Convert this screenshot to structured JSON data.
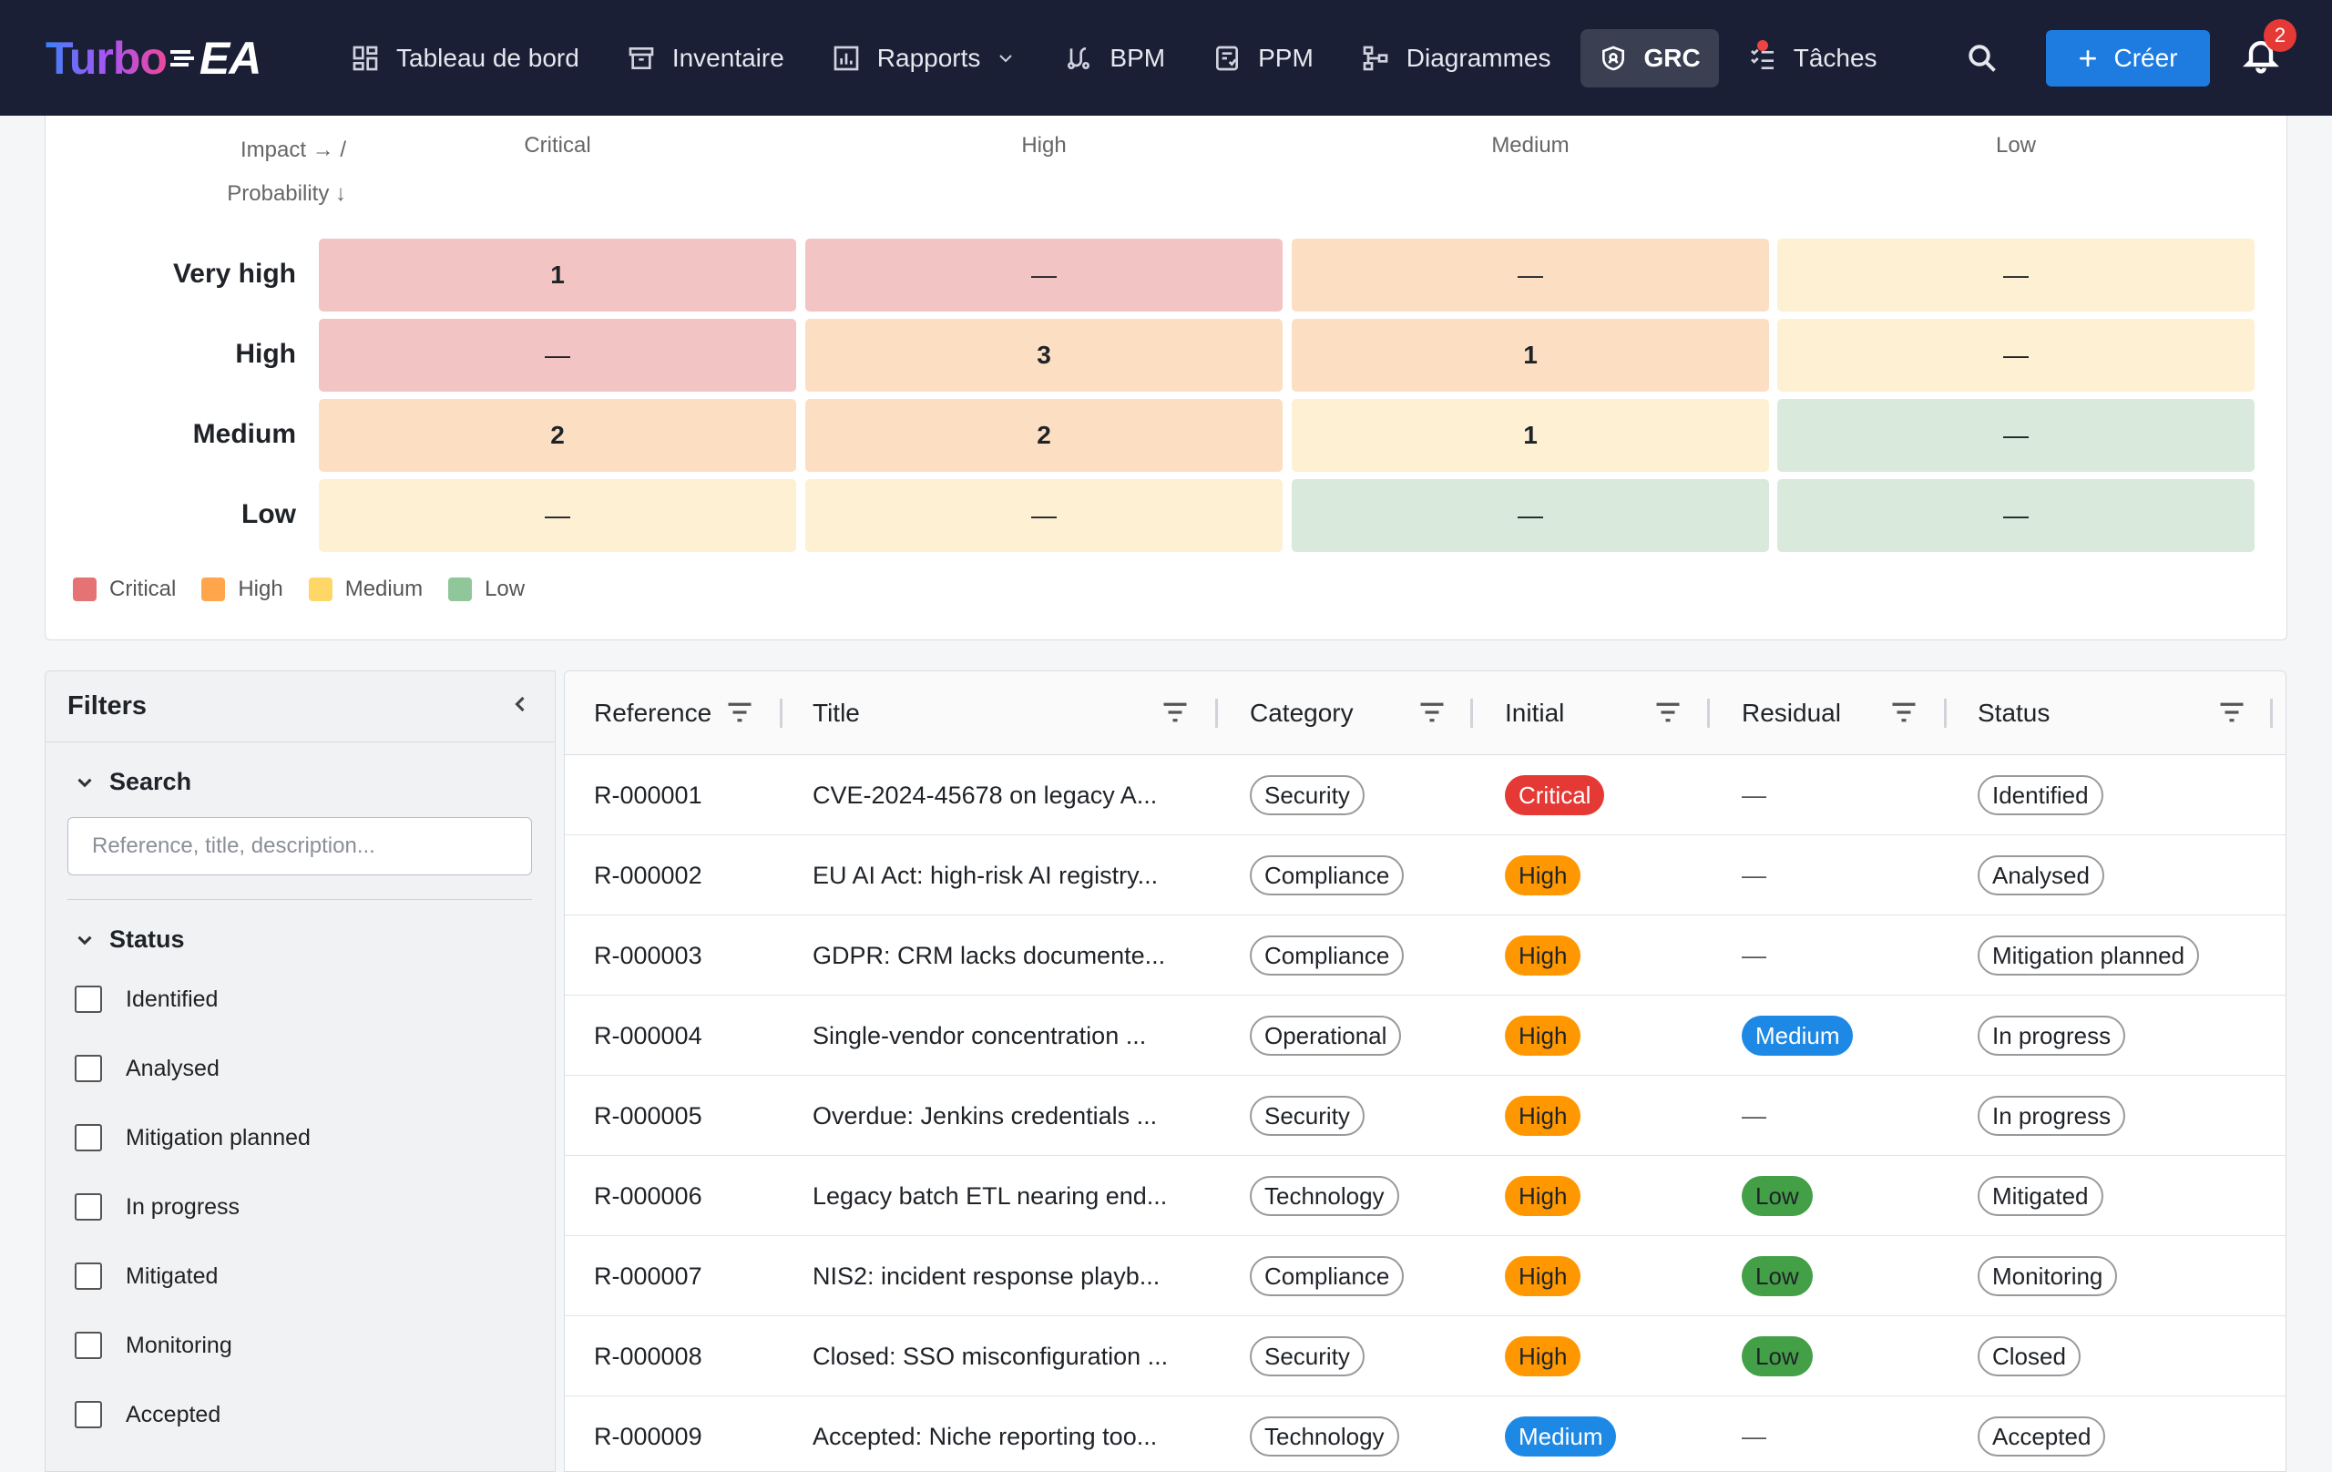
{
  "app": {
    "logo_part1": "Turbo",
    "logo_part2": "EA",
    "nav": [
      {
        "label": "Tableau de bord",
        "icon": "dashboard-icon"
      },
      {
        "label": "Inventaire",
        "icon": "inventory-icon"
      },
      {
        "label": "Rapports",
        "icon": "reports-icon"
      },
      {
        "label": "BPM",
        "icon": "bpm-icon"
      },
      {
        "label": "PPM",
        "icon": "ppm-icon"
      },
      {
        "label": "Diagrammes",
        "icon": "diagrams-icon"
      },
      {
        "label": "GRC",
        "icon": "shield-icon",
        "active": true
      },
      {
        "label": "Tâches",
        "icon": "tasks-icon"
      }
    ],
    "create_label": "Créer",
    "notification_count": "2"
  },
  "matrix": {
    "axis_impact": "Impact → /",
    "axis_probability": "Probability ↓",
    "columns": [
      "Critical",
      "High",
      "Medium",
      "Low"
    ],
    "rows": [
      {
        "label": "Very high",
        "cells": [
          "1",
          "—",
          "—",
          "—"
        ]
      },
      {
        "label": "High",
        "cells": [
          "—",
          "3",
          "1",
          "—"
        ]
      },
      {
        "label": "Medium",
        "cells": [
          "2",
          "2",
          "1",
          "—"
        ]
      },
      {
        "label": "Low",
        "cells": [
          "—",
          "—",
          "—",
          "—"
        ]
      }
    ],
    "level_colors": {
      "critical": "#f2c4c4",
      "high": "#fcdfc2",
      "medium": "#fdf0d3",
      "low": "#d9e9dc"
    },
    "cell_levels": [
      [
        "critical",
        "critical",
        "high",
        "medium"
      ],
      [
        "critical",
        "high",
        "high",
        "medium"
      ],
      [
        "high",
        "high",
        "medium",
        "low"
      ],
      [
        "medium",
        "medium",
        "low",
        "low"
      ]
    ],
    "legend": [
      {
        "label": "Critical",
        "color": "#e57373"
      },
      {
        "label": "High",
        "color": "#ffa64d"
      },
      {
        "label": "Medium",
        "color": "#ffd766"
      },
      {
        "label": "Low",
        "color": "#8fc79a"
      }
    ]
  },
  "filters": {
    "title": "Filters",
    "search_section": "Search",
    "search_placeholder": "Reference, title, description...",
    "status_section": "Status",
    "statuses": [
      "Identified",
      "Analysed",
      "Mitigation planned",
      "In progress",
      "Mitigated",
      "Monitoring",
      "Accepted"
    ]
  },
  "table": {
    "columns": [
      "Reference",
      "Title",
      "Category",
      "Initial",
      "Residual",
      "Status"
    ],
    "rows": [
      {
        "ref": "R-000001",
        "title": "CVE-2024-45678 on legacy A...",
        "category": "Security",
        "initial": "Critical",
        "residual": "—",
        "status": "Identified"
      },
      {
        "ref": "R-000002",
        "title": "EU AI Act: high-risk AI registry...",
        "category": "Compliance",
        "initial": "High",
        "residual": "—",
        "status": "Analysed"
      },
      {
        "ref": "R-000003",
        "title": "GDPR: CRM lacks documente...",
        "category": "Compliance",
        "initial": "High",
        "residual": "—",
        "status": "Mitigation planned"
      },
      {
        "ref": "R-000004",
        "title": "Single-vendor concentration ...",
        "category": "Operational",
        "initial": "High",
        "residual": "Medium",
        "status": "In progress"
      },
      {
        "ref": "R-000005",
        "title": "Overdue: Jenkins credentials ...",
        "category": "Security",
        "initial": "High",
        "residual": "—",
        "status": "In progress"
      },
      {
        "ref": "R-000006",
        "title": "Legacy batch ETL nearing end...",
        "category": "Technology",
        "initial": "High",
        "residual": "Low",
        "status": "Mitigated"
      },
      {
        "ref": "R-000007",
        "title": "NIS2: incident response playb...",
        "category": "Compliance",
        "initial": "High",
        "residual": "Low",
        "status": "Monitoring"
      },
      {
        "ref": "R-000008",
        "title": "Closed: SSO misconfiguration ...",
        "category": "Security",
        "initial": "High",
        "residual": "Low",
        "status": "Closed"
      },
      {
        "ref": "R-000009",
        "title": "Accepted: Niche reporting too...",
        "category": "Technology",
        "initial": "Medium",
        "residual": "—",
        "status": "Accepted"
      }
    ],
    "level_pill_colors": {
      "Critical": {
        "bg": "#e53935",
        "fg": "#ffffff"
      },
      "High": {
        "bg": "#ff9800",
        "fg": "#1f2328"
      },
      "Medium": {
        "bg": "#1e88e5",
        "fg": "#ffffff"
      },
      "Low": {
        "bg": "#43a047",
        "fg": "#1f2328"
      }
    }
  }
}
